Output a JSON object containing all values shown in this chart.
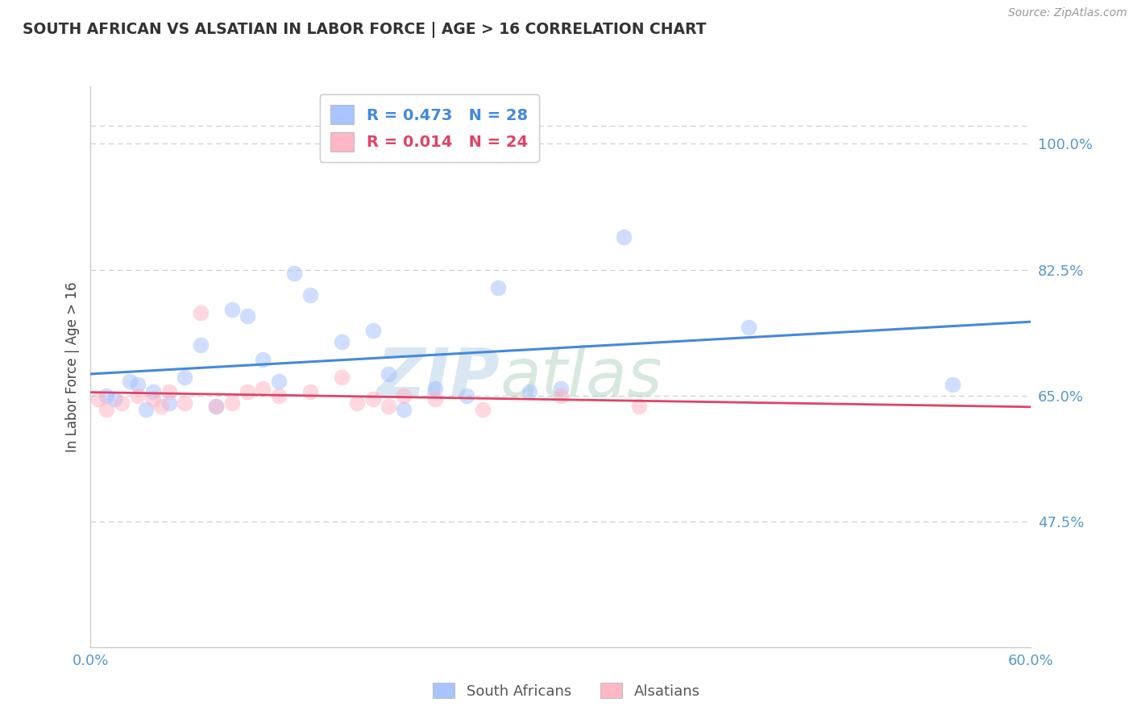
{
  "title": "SOUTH AFRICAN VS ALSATIAN IN LABOR FORCE | AGE > 16 CORRELATION CHART",
  "source": "Source: ZipAtlas.com",
  "ylabel": "In Labor Force | Age > 16",
  "xlim": [
    0.0,
    60.0
  ],
  "ylim": [
    30.0,
    108.0
  ],
  "yticks": [
    47.5,
    65.0,
    82.5,
    100.0
  ],
  "ytick_labels": [
    "47.5%",
    "65.0%",
    "82.5%",
    "100.0%"
  ],
  "xtick_positions": [
    0.0,
    60.0
  ],
  "xtick_labels": [
    "0.0%",
    "60.0%"
  ],
  "legend_r_blue": "R = 0.473",
  "legend_n_blue": "N = 28",
  "legend_r_pink": "R = 0.014",
  "legend_n_pink": "N = 24",
  "blue_fill": "#A0BFFF",
  "blue_line": "#4488DD",
  "pink_fill": "#FFB0C0",
  "pink_line": "#DD4466",
  "axis_label_color": "#5599CC",
  "grid_color": "#CCCCCC",
  "title_color": "#333333",
  "source_color": "#999999",
  "watermark_top": "ZIP",
  "watermark_bot": "atlas",
  "background_color": "#FFFFFF",
  "south_african_x": [
    1.0,
    1.5,
    2.5,
    3.0,
    3.5,
    4.0,
    5.0,
    6.0,
    7.0,
    8.0,
    9.0,
    10.0,
    11.0,
    12.0,
    13.0,
    14.0,
    16.0,
    18.0,
    19.0,
    20.0,
    22.0,
    24.0,
    26.0,
    28.0,
    30.0,
    34.0,
    42.0,
    55.0
  ],
  "south_african_y": [
    65.0,
    64.5,
    67.0,
    66.5,
    63.0,
    65.5,
    64.0,
    67.5,
    72.0,
    63.5,
    77.0,
    76.0,
    70.0,
    67.0,
    82.0,
    79.0,
    72.5,
    74.0,
    68.0,
    63.0,
    66.0,
    65.0,
    80.0,
    65.5,
    66.0,
    87.0,
    74.5,
    66.5
  ],
  "alsatian_x": [
    0.5,
    1.0,
    2.0,
    3.0,
    4.0,
    4.5,
    5.0,
    6.0,
    7.0,
    8.0,
    9.0,
    10.0,
    11.0,
    12.0,
    14.0,
    16.0,
    17.0,
    18.0,
    19.0,
    20.0,
    22.0,
    25.0,
    30.0,
    35.0
  ],
  "alsatian_y": [
    64.5,
    63.0,
    64.0,
    65.0,
    64.5,
    63.5,
    65.5,
    64.0,
    76.5,
    63.5,
    64.0,
    65.5,
    66.0,
    65.0,
    65.5,
    67.5,
    64.0,
    64.5,
    63.5,
    65.0,
    64.5,
    63.0,
    65.0,
    63.5
  ]
}
